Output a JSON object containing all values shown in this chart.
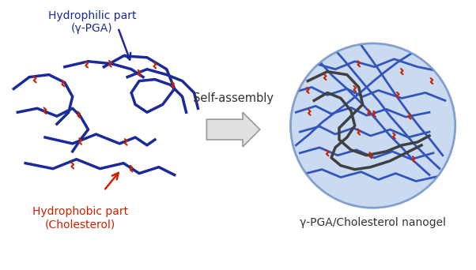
{
  "bg_color": "#ffffff",
  "hydrophilic_label": "Hydrophilic part\n(γ-PGA)",
  "hydrophilic_color": "#2060b0",
  "hydrophobic_label": "Hydrophobic part\n(Cholesterol)",
  "hydrophobic_color": "#cc2200",
  "arrow_label": "Self-assembly",
  "nanogel_label": "γ-PGA/Cholesterol nanogel",
  "nanogel_circle_color": "#c5d8f0",
  "nanogel_edge_color": "#7898c8",
  "dark_chain_color": "#404040",
  "blue_chain_color": "#1a2a9a",
  "med_blue_color": "#3355bb",
  "red_color": "#cc2200"
}
